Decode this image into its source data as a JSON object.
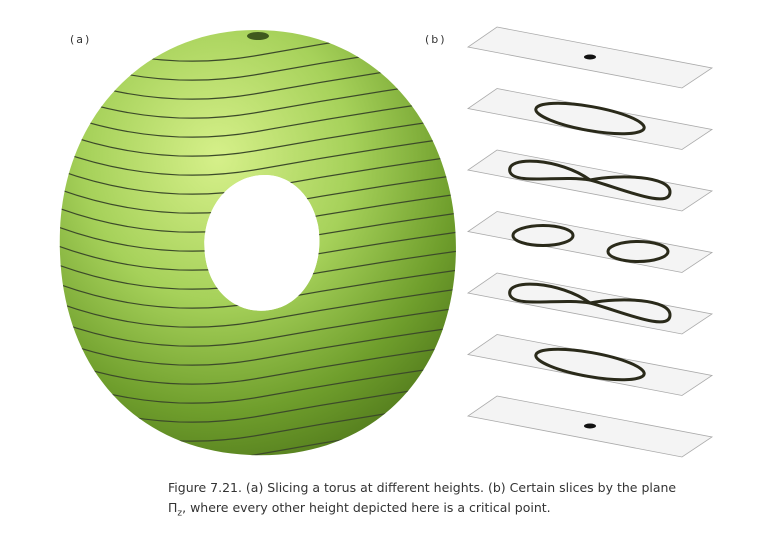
{
  "figure": {
    "panel_a_label": "(a)",
    "panel_b_label": "(b)",
    "caption": {
      "line1": "Figure 7.21. (a) Slicing a torus at different heights. (b) Certain slices by the plane",
      "symbol": "Π",
      "subscript": "z",
      "line2": ", where every other height depicted here is a critical point."
    }
  }
}
